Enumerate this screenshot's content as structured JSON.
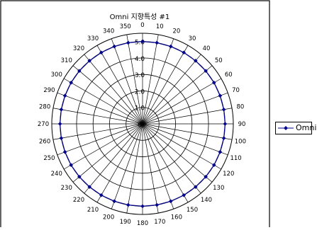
{
  "chart_data": {
    "type": "radar",
    "title": "Omni 지향특성 #1",
    "angle_labels": [
      "350",
      "340",
      "330",
      "320",
      "310",
      "300",
      "290",
      "280",
      "270",
      "260",
      "250",
      "240",
      "230",
      "220",
      "210",
      "200",
      "190",
      "180",
      "170",
      "160",
      "150",
      "140",
      "130",
      "120",
      "110",
      "100",
      "90",
      "80",
      "70",
      "60",
      "50",
      "40",
      "30",
      "20",
      "10",
      "0"
    ],
    "series": [
      {
        "name": "Omni",
        "color": "#00008b",
        "values": [
          5.0,
          5.0,
          5.0,
          5.0,
          5.0,
          5.0,
          5.0,
          5.0,
          5.0,
          5.0,
          5.0,
          5.0,
          5.0,
          5.0,
          5.0,
          5.0,
          5.0,
          5.0,
          5.0,
          5.0,
          5.0,
          5.0,
          5.0,
          5.0,
          5.0,
          5.0,
          5.0,
          5.0,
          5.0,
          5.0,
          5.0,
          5.0,
          5.0,
          5.0,
          5.0,
          5.0
        ]
      }
    ],
    "radial_ticks": [
      "0",
      "1.0",
      "2.0",
      "3.0",
      "4.0",
      "5.0"
    ],
    "rmax": 5.5,
    "legend_position": "right"
  }
}
